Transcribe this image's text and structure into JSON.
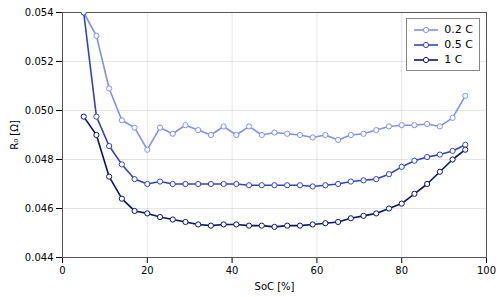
{
  "chart_data": {
    "type": "line",
    "xlabel": "SoC [%]",
    "ylabel": "R₀ [Ω]",
    "x": [
      5,
      8,
      11,
      14,
      17,
      20,
      23,
      26,
      29,
      32,
      35,
      38,
      41,
      44,
      47,
      50,
      53,
      56,
      59,
      62,
      65,
      68,
      71,
      74,
      77,
      80,
      83,
      86,
      89,
      92,
      95
    ],
    "series": [
      {
        "name": "0.2 C",
        "color": "#8090e8",
        "marker": "circle",
        "values": [
          0.054,
          0.05305,
          0.0509,
          0.0496,
          0.0493,
          0.0484,
          0.0493,
          0.04905,
          0.0494,
          0.0492,
          0.049,
          0.04935,
          0.049,
          0.04935,
          0.049,
          0.0491,
          0.04905,
          0.049,
          0.0489,
          0.049,
          0.0488,
          0.049,
          0.04905,
          0.0492,
          0.04935,
          0.0494,
          0.0494,
          0.04945,
          0.04935,
          0.0497,
          0.0506
        ]
      },
      {
        "name": "0.5 C",
        "color": "#3344bb",
        "marker": "circle",
        "values": [
          0.054,
          0.04975,
          0.04855,
          0.0478,
          0.0472,
          0.047,
          0.0471,
          0.047,
          0.047,
          0.047,
          0.047,
          0.047,
          0.047,
          0.04695,
          0.04695,
          0.04695,
          0.04695,
          0.04695,
          0.0469,
          0.04695,
          0.047,
          0.0471,
          0.04715,
          0.0472,
          0.0474,
          0.0477,
          0.04795,
          0.0481,
          0.0482,
          0.04835,
          0.0486
        ]
      },
      {
        "name": "1 C",
        "color": "#0a1566",
        "marker": "circle",
        "values": [
          0.04975,
          0.049,
          0.0473,
          0.0464,
          0.0459,
          0.0458,
          0.04565,
          0.04555,
          0.04545,
          0.04535,
          0.0453,
          0.04535,
          0.04535,
          0.0453,
          0.0453,
          0.04525,
          0.0453,
          0.0453,
          0.04535,
          0.0454,
          0.04545,
          0.0456,
          0.0457,
          0.0458,
          0.046,
          0.0462,
          0.0466,
          0.047,
          0.0475,
          0.048,
          0.0484
        ]
      }
    ],
    "xlim": [
      0,
      100
    ],
    "xticks": [
      0,
      20,
      40,
      60,
      80,
      100
    ],
    "ylim": [
      0.044,
      0.054
    ],
    "yticks": [
      0.044,
      0.046,
      0.048,
      {
        "value": 0.05,
        "label": "0.050"
      },
      0.052,
      0.054
    ],
    "grid": true,
    "legend": "upper right"
  }
}
